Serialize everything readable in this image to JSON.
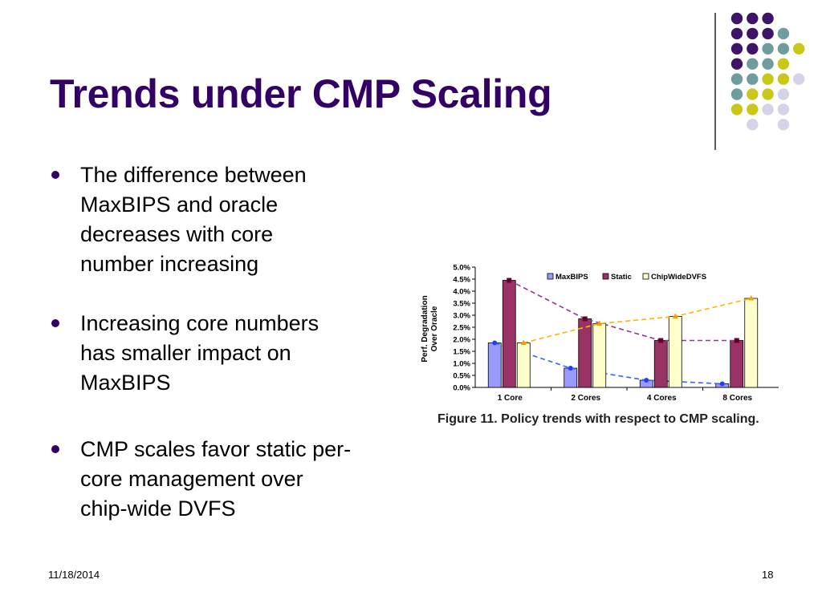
{
  "slide": {
    "title": "Trends under CMP Scaling",
    "bullets": [
      {
        "lines": [
          "The difference between",
          "MaxBIPS and oracle",
          "decreases with core",
          "number increasing"
        ]
      },
      {
        "lines": [
          "Increasing core numbers",
          "has smaller impact on",
          "MaxBIPS"
        ]
      },
      {
        "lines": [
          "CMP scales favor static per-",
          "core management over",
          "chip-wide DVFS"
        ]
      }
    ],
    "footer_date": "11/18/2014",
    "page_number": "18",
    "caption": "Figure 11. Policy trends with respect to CMP scaling."
  },
  "colors": {
    "title": "#330066",
    "dark_purple": "#3d1466",
    "teal": "#6f9c9d",
    "yellow": "#c9c81a",
    "lavender": "#d4d4e6"
  },
  "decor_dots": {
    "rows": [
      [
        "dark_purple",
        "dark_purple",
        "dark_purple",
        "none",
        "none"
      ],
      [
        "dark_purple",
        "dark_purple",
        "dark_purple",
        "teal",
        "none"
      ],
      [
        "dark_purple",
        "dark_purple",
        "teal",
        "teal",
        "yellow"
      ],
      [
        "dark_purple",
        "teal",
        "teal",
        "yellow",
        "none"
      ],
      [
        "teal",
        "teal",
        "yellow",
        "yellow",
        "lavender"
      ],
      [
        "teal",
        "yellow",
        "yellow",
        "lavender",
        "none"
      ],
      [
        "yellow",
        "yellow",
        "lavender",
        "lavender",
        "none"
      ],
      [
        "none",
        "lavender",
        "none",
        "lavender",
        "none"
      ]
    ]
  },
  "chart_data": {
    "type": "bar",
    "ylabel": "Perf. Degradation Over Oracle",
    "ylim": [
      0,
      5.0
    ],
    "yticks": [
      "0.0%",
      "0.5%",
      "1.0%",
      "1.5%",
      "2.0%",
      "2.5%",
      "3.0%",
      "3.5%",
      "4.0%",
      "4.5%",
      "5.0%"
    ],
    "categories": [
      "1 Core",
      "2 Cores",
      "4 Cores",
      "8 Cores"
    ],
    "legend_position": "top-right",
    "series": [
      {
        "name": "MaxBIPS",
        "values": [
          1.85,
          0.8,
          0.3,
          0.15
        ],
        "color": "#9999ff",
        "line_color": "#3366ff",
        "marker": "circle"
      },
      {
        "name": "Static",
        "values": [
          4.45,
          2.85,
          1.95,
          1.95
        ],
        "color": "#993366",
        "line_color": "#993399",
        "marker": "square"
      },
      {
        "name": "ChipWideDVFS",
        "values": [
          1.85,
          2.65,
          2.95,
          3.7
        ],
        "color": "#ffffcc",
        "line_color": "#ffb400",
        "marker": "triangle"
      }
    ]
  }
}
